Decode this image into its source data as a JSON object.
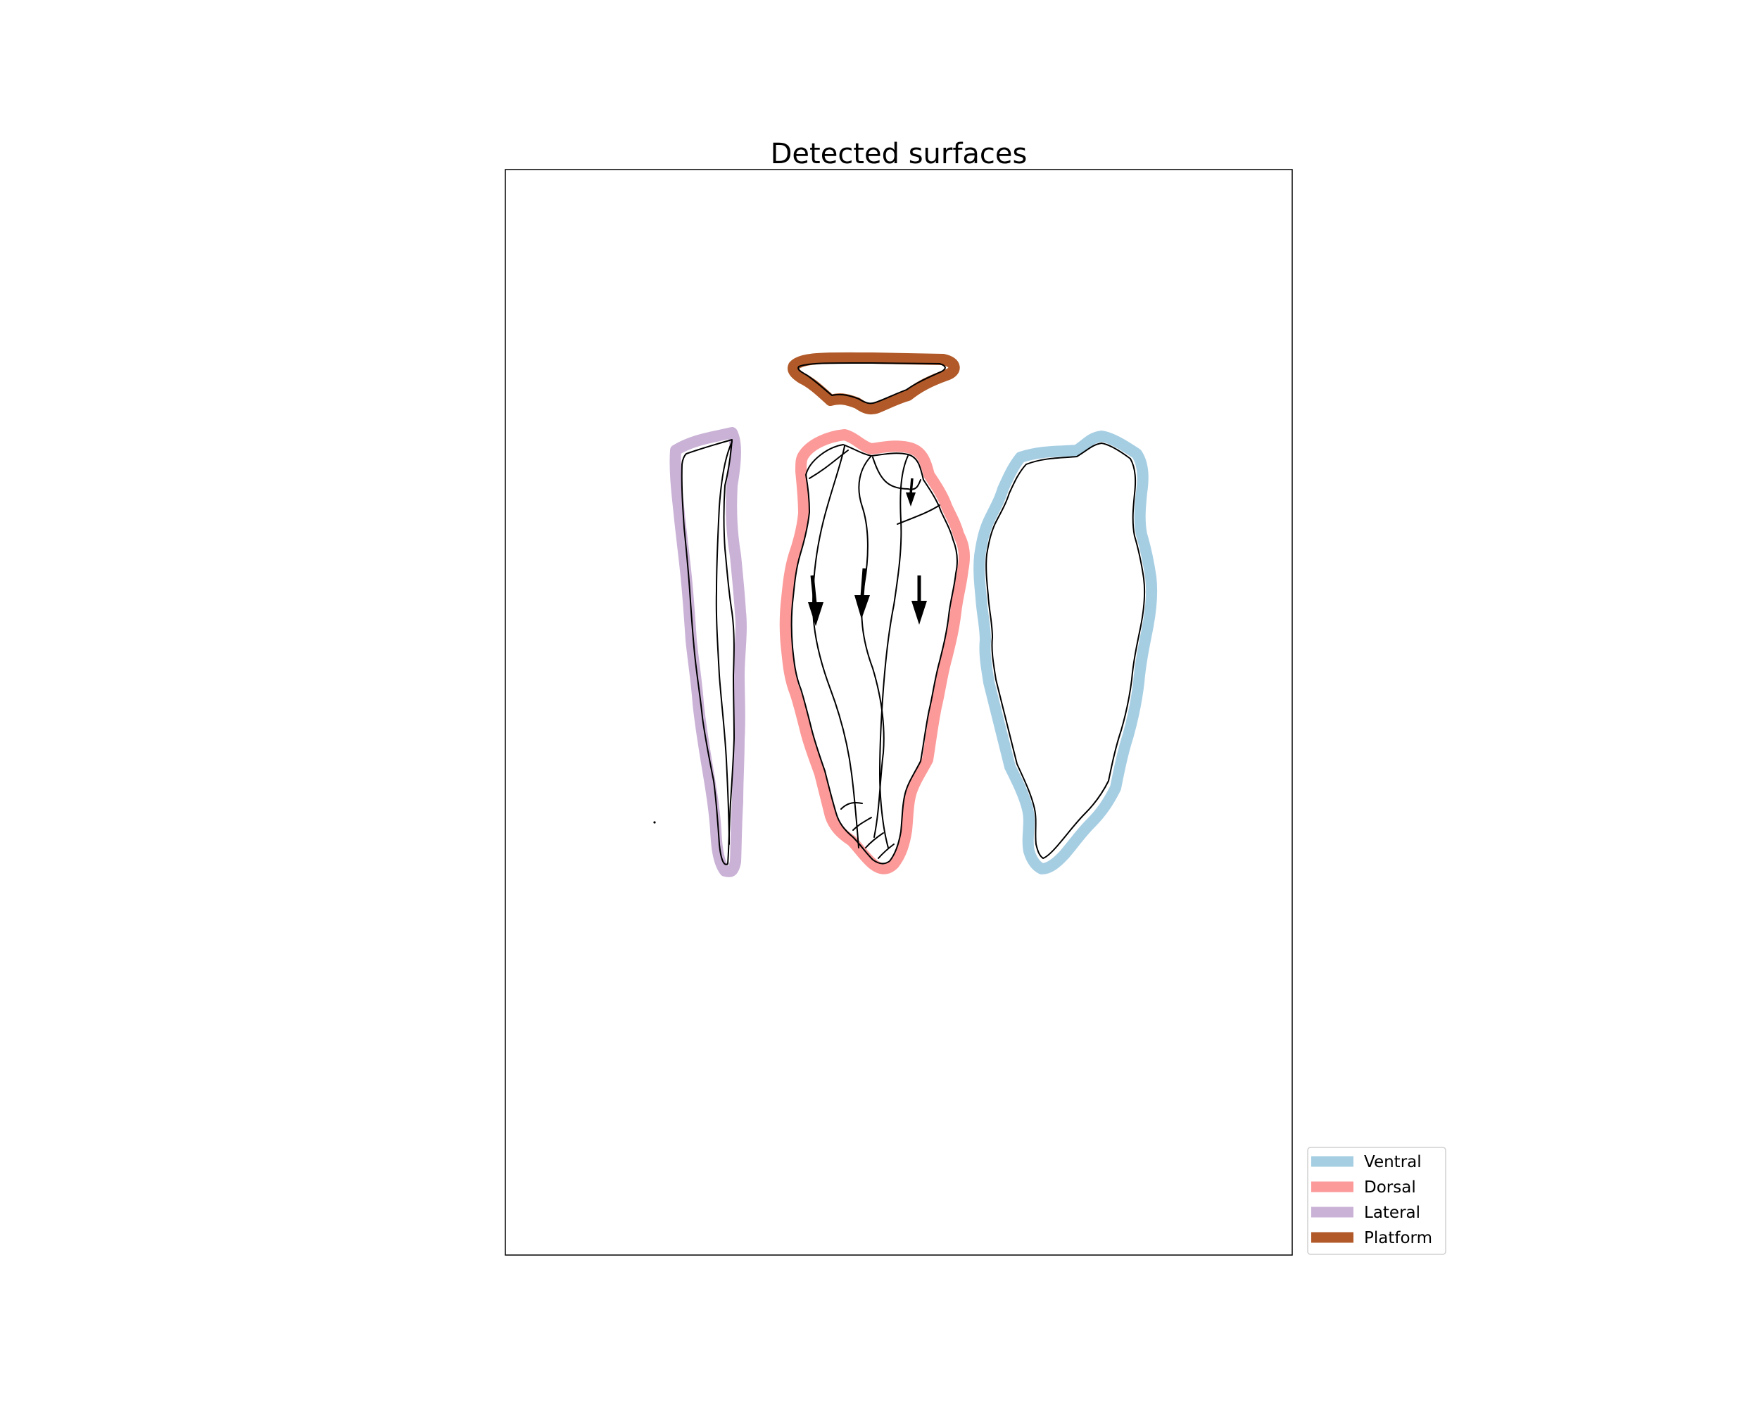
{
  "title": "Detected surfaces",
  "legend": {
    "items": [
      {
        "label": "Ventral",
        "color": "#a6cee3"
      },
      {
        "label": "Dorsal",
        "color": "#fb9a99"
      },
      {
        "label": "Lateral",
        "color": "#cab2d6"
      },
      {
        "label": "Platform",
        "color": "#b15928"
      }
    ]
  },
  "surfaces": {
    "platform": {
      "color": "#b15928"
    },
    "lateral": {
      "color": "#cab2d6"
    },
    "dorsal": {
      "color": "#fb9a99",
      "scar_arrows": 4
    },
    "ventral": {
      "color": "#a6cee3"
    }
  }
}
